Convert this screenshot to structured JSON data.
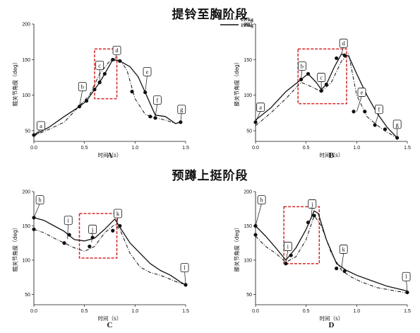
{
  "titles": {
    "top": "提铃至胸阶段",
    "bottom": "预蹲上挺阶段"
  },
  "legend": {
    "series_a": "197kg",
    "series_b": "199kg"
  },
  "colors": {
    "highlight_box": "#d62728",
    "lines": "#111111"
  },
  "chart_data": [
    {
      "panel": "A",
      "type": "line",
      "ylabel": "髋关节角度（deg）",
      "xlabel": "时间（s）",
      "xlim": [
        0,
        1.5
      ],
      "ylim": [
        35,
        200
      ],
      "xticks": [
        "0.0",
        "0.5",
        "1.0",
        "1.5"
      ],
      "yticks": [
        "50",
        "100",
        "150",
        "200"
      ],
      "series": [
        {
          "name": "197kg",
          "style": "dash-dot",
          "x": [
            0.0,
            0.15,
            0.3,
            0.45,
            0.55,
            0.65,
            0.75,
            0.85,
            0.92,
            1.0,
            1.1,
            1.2,
            1.3,
            1.4,
            1.45
          ],
          "y": [
            43,
            52,
            62,
            85,
            100,
            130,
            148,
            150,
            135,
            95,
            73,
            68,
            65,
            60,
            62
          ]
        },
        {
          "name": "199kg",
          "style": "solid",
          "x": [
            0.0,
            0.15,
            0.3,
            0.45,
            0.52,
            0.6,
            0.65,
            0.7,
            0.78,
            0.85,
            0.95,
            1.03,
            1.1,
            1.15,
            1.2,
            1.3,
            1.4,
            1.45
          ],
          "y": [
            44,
            55,
            70,
            84,
            92,
            108,
            118,
            130,
            150,
            148,
            140,
            126,
            104,
            88,
            72,
            70,
            60,
            62
          ]
        }
      ],
      "markers": {
        "x": [
          0.0,
          0.45,
          0.52,
          0.6,
          0.65,
          0.7,
          0.78,
          0.85,
          0.97,
          1.1,
          1.15,
          1.2,
          1.45
        ],
        "y": [
          44,
          84,
          92,
          108,
          118,
          130,
          150,
          148,
          105,
          104,
          70,
          68,
          62
        ]
      },
      "annotations": [
        {
          "label": "a",
          "x": 0.0,
          "y": 44,
          "lx": 0.07,
          "ly": 57
        },
        {
          "label": "b",
          "x": 0.45,
          "y": 84,
          "lx": 0.48,
          "ly": 112
        },
        {
          "label": "c",
          "x": 0.65,
          "y": 118,
          "lx": 0.65,
          "ly": 142
        },
        {
          "label": "d",
          "x": 0.8,
          "y": 150,
          "lx": 0.82,
          "ly": 163
        },
        {
          "label": "e",
          "x": 1.1,
          "y": 104,
          "lx": 1.12,
          "ly": 133
        },
        {
          "label": "f",
          "x": 1.2,
          "y": 70,
          "lx": 1.22,
          "ly": 93
        },
        {
          "label": "g",
          "x": 1.45,
          "y": 62,
          "lx": 1.46,
          "ly": 80
        }
      ],
      "highlight_box": {
        "x": [
          0.6,
          0.82
        ],
        "y": [
          95,
          165
        ]
      }
    },
    {
      "panel": "B",
      "type": "line",
      "ylabel": "膝关节角度（deg）",
      "xlabel": "时间（s）",
      "xlim": [
        0,
        1.5
      ],
      "ylim": [
        35,
        200
      ],
      "xticks": [
        "0.0",
        "0.5",
        "1.0",
        "1.5"
      ],
      "yticks": [
        "50",
        "100",
        "150",
        "200"
      ],
      "series": [
        {
          "name": "197kg",
          "style": "dash-dot",
          "x": [
            0.0,
            0.15,
            0.3,
            0.45,
            0.55,
            0.65,
            0.75,
            0.85,
            0.92,
            1.0,
            1.1,
            1.2,
            1.3,
            1.4
          ],
          "y": [
            57,
            75,
            95,
            118,
            112,
            105,
            118,
            148,
            158,
            100,
            70,
            58,
            48,
            40
          ]
        },
        {
          "name": "199kg",
          "style": "solid",
          "x": [
            0.0,
            0.15,
            0.3,
            0.45,
            0.52,
            0.6,
            0.65,
            0.7,
            0.78,
            0.85,
            0.92,
            1.0,
            1.1,
            1.2,
            1.3,
            1.4
          ],
          "y": [
            65,
            82,
            105,
            122,
            130,
            118,
            108,
            115,
            140,
            158,
            155,
            130,
            100,
            75,
            55,
            40
          ]
        }
      ],
      "markers": {
        "x": [
          0.0,
          0.45,
          0.52,
          0.65,
          0.7,
          0.8,
          0.88,
          0.97,
          1.08,
          1.18,
          1.28,
          1.4
        ],
        "y": [
          62,
          122,
          130,
          106,
          115,
          152,
          156,
          77,
          77,
          58,
          52,
          40
        ]
      },
      "annotations": [
        {
          "label": "a",
          "x": 0.0,
          "y": 62,
          "lx": 0.05,
          "ly": 83
        },
        {
          "label": "b",
          "x": 0.45,
          "y": 122,
          "lx": 0.46,
          "ly": 141
        },
        {
          "label": "c",
          "x": 0.65,
          "y": 106,
          "lx": 0.65,
          "ly": 125
        },
        {
          "label": "d",
          "x": 0.85,
          "y": 158,
          "lx": 0.87,
          "ly": 173
        },
        {
          "label": "e",
          "x": 1.0,
          "y": 77,
          "lx": 1.05,
          "ly": 104
        },
        {
          "label": "f",
          "x": 1.18,
          "y": 58,
          "lx": 1.22,
          "ly": 80
        },
        {
          "label": "g",
          "x": 1.4,
          "y": 40,
          "lx": 1.4,
          "ly": 59
        }
      ],
      "highlight_box": {
        "x": [
          0.42,
          0.9
        ],
        "y": [
          88,
          165
        ]
      }
    },
    {
      "panel": "C",
      "type": "line",
      "ylabel": "髋关节角度（deg）",
      "xlabel": "时间（s）",
      "xlim": [
        0,
        1.5
      ],
      "ylim": [
        35,
        200
      ],
      "xticks": [
        "0.0",
        "0.5",
        "1.0",
        "1.5"
      ],
      "yticks": [
        "50",
        "100",
        "150",
        "200"
      ],
      "series": [
        {
          "name": "197kg",
          "style": "dash-dot",
          "x": [
            0.0,
            0.1,
            0.2,
            0.3,
            0.4,
            0.5,
            0.6,
            0.7,
            0.8,
            0.85,
            0.95,
            1.05,
            1.15,
            1.25,
            1.35,
            1.45,
            1.5
          ],
          "y": [
            145,
            140,
            132,
            125,
            118,
            113,
            120,
            140,
            152,
            145,
            110,
            90,
            82,
            78,
            72,
            66,
            65
          ]
        },
        {
          "name": "199kg",
          "style": "solid",
          "x": [
            0.0,
            0.1,
            0.2,
            0.3,
            0.4,
            0.5,
            0.6,
            0.7,
            0.8,
            0.85,
            0.95,
            1.05,
            1.15,
            1.25,
            1.35,
            1.45,
            1.5
          ],
          "y": [
            162,
            158,
            150,
            142,
            130,
            128,
            132,
            145,
            160,
            148,
            125,
            110,
            95,
            85,
            78,
            68,
            64
          ]
        }
      ],
      "markers": {
        "x": [
          0.0,
          0.0,
          0.3,
          0.35,
          0.55,
          0.58,
          0.78,
          0.85,
          1.5
        ],
        "y": [
          162,
          145,
          125,
          137,
          120,
          133,
          143,
          150,
          64
        ]
      },
      "annotations": [
        {
          "label": "h",
          "x": 0.0,
          "y": 162,
          "lx": 0.06,
          "ly": 188
        },
        {
          "label": "i",
          "x": 0.33,
          "y": 131,
          "lx": 0.34,
          "ly": 158
        },
        {
          "label": "j",
          "x": 0.57,
          "y": 126,
          "lx": 0.58,
          "ly": 145
        },
        {
          "label": "k",
          "x": 0.82,
          "y": 152,
          "lx": 0.83,
          "ly": 168
        },
        {
          "label": "l",
          "x": 1.5,
          "y": 64,
          "lx": 1.49,
          "ly": 89
        }
      ],
      "highlight_box": {
        "x": [
          0.45,
          0.82
        ],
        "y": [
          103,
          168
        ]
      }
    },
    {
      "panel": "D",
      "type": "line",
      "ylabel": "膝关节角度（deg）",
      "xlabel": "时间（s）",
      "xlim": [
        0,
        1.5
      ],
      "ylim": [
        35,
        200
      ],
      "xticks": [
        "0.0",
        "0.5",
        "1.0",
        "1.5"
      ],
      "yticks": [
        "50",
        "100",
        "150",
        "200"
      ],
      "series": [
        {
          "name": "197kg",
          "style": "dash-dot",
          "x": [
            0.0,
            0.1,
            0.2,
            0.3,
            0.4,
            0.5,
            0.58,
            0.65,
            0.75,
            0.85,
            0.95,
            1.05,
            1.2,
            1.35,
            1.5
          ],
          "y": [
            135,
            120,
            110,
            97,
            105,
            130,
            165,
            150,
            110,
            85,
            75,
            68,
            60,
            56,
            52
          ]
        },
        {
          "name": "199kg",
          "style": "solid",
          "x": [
            0.0,
            0.1,
            0.2,
            0.3,
            0.4,
            0.5,
            0.58,
            0.62,
            0.7,
            0.8,
            0.9,
            1.0,
            1.15,
            1.3,
            1.5
          ],
          "y": [
            150,
            135,
            118,
            100,
            118,
            145,
            172,
            168,
            130,
            95,
            85,
            78,
            70,
            62,
            55
          ]
        }
      ],
      "markers": {
        "x": [
          0.0,
          0.0,
          0.3,
          0.35,
          0.52,
          0.58,
          0.8,
          0.88,
          1.5
        ],
        "y": [
          150,
          137,
          95,
          107,
          155,
          165,
          88,
          84,
          53
        ]
      },
      "annotations": [
        {
          "label": "h",
          "x": 0.0,
          "y": 150,
          "lx": 0.06,
          "ly": 188
        },
        {
          "label": "i",
          "x": 0.3,
          "y": 97,
          "lx": 0.32,
          "ly": 120
        },
        {
          "label": "j",
          "x": 0.55,
          "y": 160,
          "lx": 0.56,
          "ly": 182
        },
        {
          "label": "k",
          "x": 0.85,
          "y": 87,
          "lx": 0.87,
          "ly": 116
        },
        {
          "label": "l",
          "x": 1.5,
          "y": 53,
          "lx": 1.49,
          "ly": 76
        }
      ],
      "highlight_box": {
        "x": [
          0.28,
          0.63
        ],
        "y": [
          95,
          178
        ]
      }
    }
  ]
}
